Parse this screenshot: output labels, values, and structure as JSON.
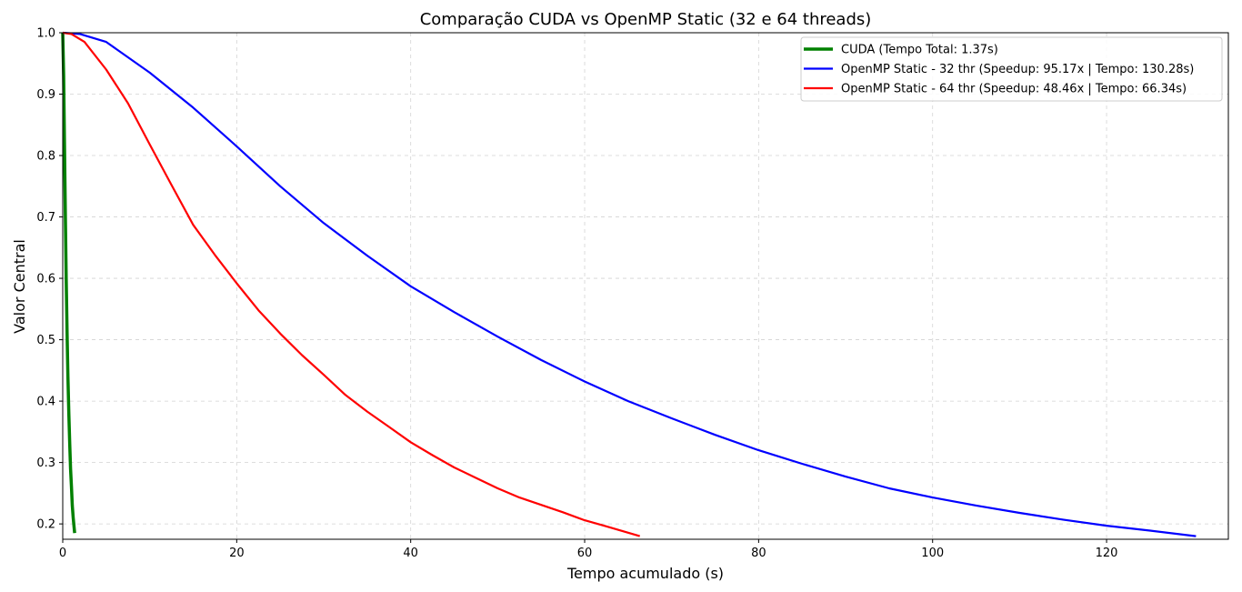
{
  "chart_data": {
    "type": "line",
    "title": "Comparação CUDA vs OpenMP Static (32 e 64 threads)",
    "xlabel": "Tempo acumulado (s)",
    "ylabel": "Valor Central",
    "xlim": [
      0,
      134
    ],
    "ylim": [
      0.175,
      1.0
    ],
    "xticks": [
      0,
      20,
      40,
      60,
      80,
      100,
      120
    ],
    "yticks": [
      0.2,
      0.3,
      0.4,
      0.5,
      0.6,
      0.7,
      0.8,
      0.9,
      1.0
    ],
    "grid": true,
    "legend_position": "top-right",
    "series": [
      {
        "name": "CUDA (Tempo Total: 1.37s)",
        "color": "#008000",
        "x": [
          0,
          0.1,
          0.2,
          0.3,
          0.4,
          0.5,
          0.6,
          0.7,
          0.8,
          0.9,
          1.0,
          1.1,
          1.2,
          1.37
        ],
        "y": [
          1.0,
          0.93,
          0.82,
          0.7,
          0.6,
          0.51,
          0.44,
          0.38,
          0.33,
          0.29,
          0.26,
          0.23,
          0.21,
          0.185
        ]
      },
      {
        "name": "OpenMP Static - 32 thr (Speedup: 95.17x | Tempo: 130.28s)",
        "color": "#0000ff",
        "x": [
          0,
          2,
          5,
          10,
          15,
          20,
          25,
          30,
          35,
          40,
          45,
          50,
          55,
          60,
          65,
          70,
          75,
          80,
          85,
          90,
          95,
          100,
          105,
          110,
          115,
          120,
          125,
          130.28
        ],
        "y": [
          1.0,
          0.998,
          0.985,
          0.935,
          0.878,
          0.815,
          0.75,
          0.69,
          0.637,
          0.587,
          0.545,
          0.505,
          0.467,
          0.432,
          0.4,
          0.372,
          0.345,
          0.32,
          0.298,
          0.277,
          0.258,
          0.243,
          0.23,
          0.218,
          0.207,
          0.197,
          0.189,
          0.18
        ]
      },
      {
        "name": "OpenMP Static - 64 thr (Speedup: 48.46x | Tempo: 66.34s)",
        "color": "#ff0000",
        "x": [
          0,
          1,
          2.5,
          5,
          7.5,
          10,
          12.5,
          15,
          17.5,
          20,
          22.5,
          25,
          27.5,
          30,
          32.5,
          35,
          37.5,
          40,
          42.5,
          45,
          47.5,
          50,
          52.5,
          55,
          57.5,
          60,
          62.5,
          66.34
        ],
        "y": [
          1.0,
          0.998,
          0.985,
          0.94,
          0.885,
          0.818,
          0.752,
          0.687,
          0.638,
          0.592,
          0.548,
          0.51,
          0.475,
          0.443,
          0.41,
          0.383,
          0.358,
          0.333,
          0.312,
          0.292,
          0.275,
          0.258,
          0.243,
          0.231,
          0.219,
          0.206,
          0.196,
          0.18
        ]
      }
    ]
  }
}
